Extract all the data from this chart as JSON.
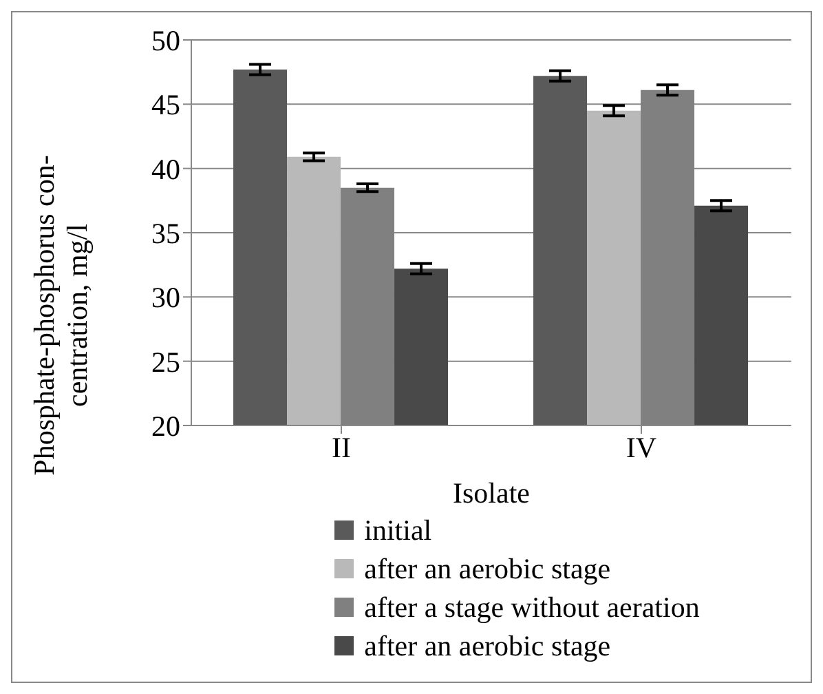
{
  "chart_data": {
    "type": "bar",
    "xlabel": "Isolate",
    "ylabel": "Phosphate-phosphorus con-\ncentration, mg/l",
    "categories": [
      "II",
      "IV"
    ],
    "series": [
      {
        "name": "initial",
        "color": "#5a5a5a",
        "values": [
          47.7,
          47.2
        ],
        "errors": [
          0.4,
          0.4
        ]
      },
      {
        "name": "after an aerobic stage",
        "color": "#b9b9b9",
        "values": [
          40.9,
          44.5
        ],
        "errors": [
          0.3,
          0.4
        ]
      },
      {
        "name": "after a stage without aeration",
        "color": "#808080",
        "values": [
          38.5,
          46.1
        ],
        "errors": [
          0.3,
          0.4
        ]
      },
      {
        "name": "after an aerobic stage",
        "color": "#494949",
        "values": [
          32.2,
          37.1
        ],
        "errors": [
          0.4,
          0.4
        ]
      }
    ],
    "ylim": [
      20,
      50
    ],
    "yticks": [
      20,
      25,
      30,
      35,
      40,
      45,
      50
    ],
    "grid": "y",
    "legend": "bottom"
  }
}
